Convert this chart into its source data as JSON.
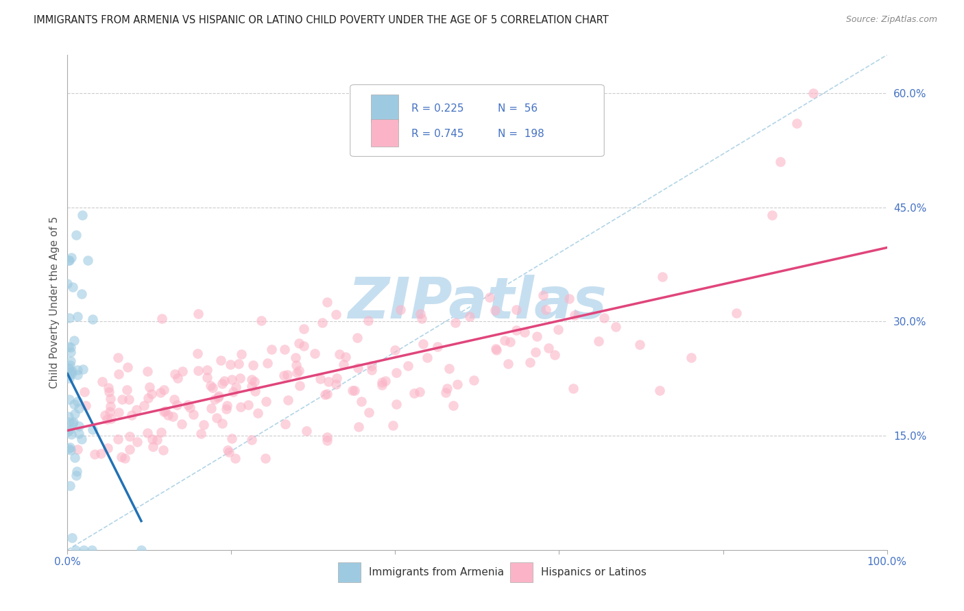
{
  "title": "IMMIGRANTS FROM ARMENIA VS HISPANIC OR LATINO CHILD POVERTY UNDER THE AGE OF 5 CORRELATION CHART",
  "source": "Source: ZipAtlas.com",
  "ylabel": "Child Poverty Under the Age of 5",
  "xlim": [
    0,
    1.0
  ],
  "ylim": [
    0,
    0.65
  ],
  "R_armenia": 0.225,
  "N_armenia": 56,
  "R_hispanic": 0.745,
  "N_hispanic": 198,
  "legend_label_armenia": "Immigrants from Armenia",
  "legend_label_hispanic": "Hispanics or Latinos",
  "color_armenia": "#9ecae1",
  "color_hispanic": "#fbb4c7",
  "trendline_armenia": "#2171b5",
  "trendline_hispanic": "#e0457b",
  "diagonal_color": "#9ecae1",
  "watermark": "ZIPatlas",
  "watermark_color": "#c6dff0",
  "background_color": "#ffffff",
  "title_color": "#222222",
  "axis_label_color": "#555555",
  "tick_label_color": "#4472c4",
  "grid_color": "#cccccc",
  "legend_text_color": "#333333"
}
